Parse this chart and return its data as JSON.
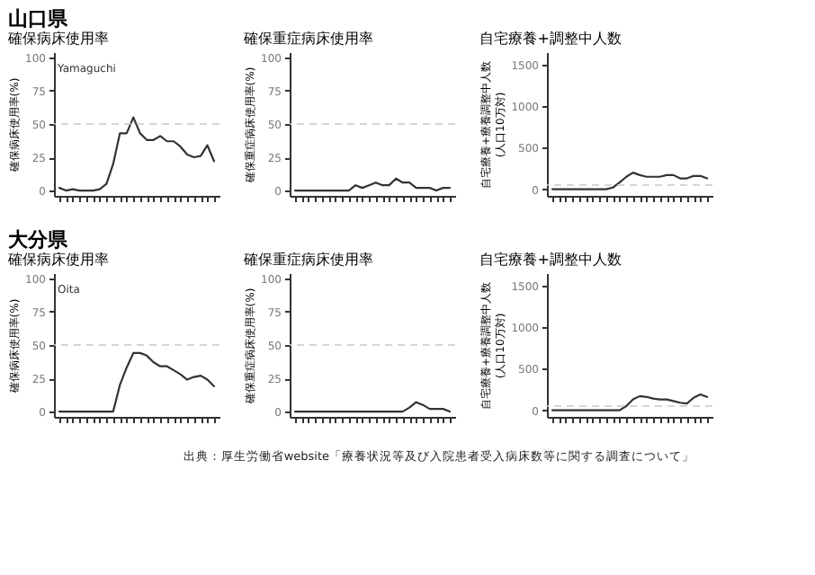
{
  "chart_data": [
    {
      "type": "line",
      "title": "確保病床使用率",
      "ylabel": "確保病床使用率(%)",
      "annotations": [
        "山口県",
        "Yamaguchi"
      ],
      "categories": [
        null,
        null,
        null,
        null,
        null,
        null,
        null,
        null,
        null,
        null,
        null,
        null,
        null,
        null,
        null,
        null,
        null,
        null,
        null,
        null,
        null,
        null,
        null,
        null
      ],
      "series": [
        {
          "color": "#333333",
          "values": [
            2,
            0,
            1,
            0,
            0,
            0,
            1,
            5,
            20,
            43,
            43,
            55,
            43,
            38,
            38,
            41,
            37,
            37,
            33,
            27,
            25,
            26,
            34,
            22
          ]
        }
      ],
      "ylim": [
        -4,
        104
      ],
      "yticks": [
        0,
        25,
        50,
        75,
        100
      ],
      "ref_lines": [
        {
          "axis": "y",
          "value": 50,
          "color": "#c8c8c8",
          "line_style": "dashed"
        }
      ],
      "tick_labels": "y",
      "grid": false
    },
    {
      "type": "line",
      "title": "確保重症病床使用率",
      "ylabel": "確保重症病床使用率(%)",
      "categories": [
        null,
        null,
        null,
        null,
        null,
        null,
        null,
        null,
        null,
        null,
        null,
        null,
        null,
        null,
        null,
        null,
        null,
        null,
        null,
        null,
        null,
        null,
        null,
        null
      ],
      "series": [
        {
          "color": "#333333",
          "values": [
            0,
            0,
            0,
            0,
            0,
            0,
            0,
            0,
            0,
            4,
            2,
            4,
            6,
            4,
            4,
            9,
            6,
            6,
            2,
            2,
            2,
            0,
            2,
            2
          ]
        }
      ],
      "ylim": [
        -4,
        104
      ],
      "yticks": [
        0,
        25,
        50,
        75,
        100
      ],
      "ref_lines": [
        {
          "axis": "y",
          "value": 50,
          "color": "#c8c8c8",
          "line_style": "dashed"
        }
      ],
      "tick_labels": "y",
      "grid": false
    },
    {
      "type": "line",
      "title": "自宅療養+調整中人数",
      "ylabel": "自宅療養+療養調整中人数(人口10万対)",
      "categories": [
        null,
        null,
        null,
        null,
        null,
        null,
        null,
        null,
        null,
        null,
        null,
        null,
        null,
        null,
        null,
        null,
        null,
        null,
        null,
        null,
        null,
        null,
        null,
        null
      ],
      "series": [
        {
          "color": "#333333",
          "values": [
            0,
            0,
            0,
            0,
            0,
            0,
            0,
            0,
            0,
            20,
            80,
            150,
            200,
            170,
            150,
            150,
            150,
            170,
            170,
            130,
            130,
            160,
            160,
            130
          ]
        }
      ],
      "ylim": [
        -80,
        1650
      ],
      "yticks": [
        0,
        500,
        1000,
        1500
      ],
      "ref_lines": [
        {
          "axis": "y",
          "value": 50,
          "color": "#c8c8c8",
          "line_style": "dashed"
        }
      ],
      "tick_labels": "y",
      "grid": false
    },
    {
      "type": "line",
      "title": "確保病床使用率",
      "ylabel": "確保病床使用率(%)",
      "annotations": [
        "大分県",
        "Oita"
      ],
      "categories": [
        null,
        null,
        null,
        null,
        null,
        null,
        null,
        null,
        null,
        null,
        null,
        null,
        null,
        null,
        null,
        null,
        null,
        null,
        null,
        null,
        null,
        null,
        null,
        null
      ],
      "series": [
        {
          "color": "#333333",
          "values": [
            0,
            0,
            0,
            0,
            0,
            0,
            0,
            0,
            0,
            20,
            33,
            44,
            44,
            42,
            37,
            34,
            34,
            31,
            28,
            24,
            26,
            27,
            24,
            19
          ]
        }
      ],
      "ylim": [
        -4,
        104
      ],
      "yticks": [
        0,
        25,
        50,
        75,
        100
      ],
      "ref_lines": [
        {
          "axis": "y",
          "value": 50,
          "color": "#c8c8c8",
          "line_style": "dashed"
        }
      ],
      "tick_labels": "y",
      "grid": false
    },
    {
      "type": "line",
      "title": "確保重症病床使用率",
      "ylabel": "確保重症病床使用率(%)",
      "categories": [
        null,
        null,
        null,
        null,
        null,
        null,
        null,
        null,
        null,
        null,
        null,
        null,
        null,
        null,
        null,
        null,
        null,
        null,
        null,
        null,
        null,
        null,
        null,
        null
      ],
      "series": [
        {
          "color": "#333333",
          "values": [
            0,
            0,
            0,
            0,
            0,
            0,
            0,
            0,
            0,
            0,
            0,
            0,
            0,
            0,
            0,
            0,
            0,
            3,
            7,
            5,
            2,
            2,
            2,
            0
          ]
        }
      ],
      "ylim": [
        -4,
        104
      ],
      "yticks": [
        0,
        25,
        50,
        75,
        100
      ],
      "ref_lines": [
        {
          "axis": "y",
          "value": 50,
          "color": "#c8c8c8",
          "line_style": "dashed"
        }
      ],
      "tick_labels": "y",
      "grid": false
    },
    {
      "type": "line",
      "title": "自宅療養+調整中人数",
      "ylabel": "自宅療養+療養調整中人数(人口10万対)",
      "annotations": [
        "出典：厚生労働省website「療養状況等及び入院患者受入病床数等に関する調査について」"
      ],
      "categories": [
        null,
        null,
        null,
        null,
        null,
        null,
        null,
        null,
        null,
        null,
        null,
        null,
        null,
        null,
        null,
        null,
        null,
        null,
        null,
        null,
        null,
        null,
        null,
        null
      ],
      "series": [
        {
          "color": "#333333",
          "values": [
            0,
            0,
            0,
            0,
            0,
            0,
            0,
            0,
            0,
            0,
            0,
            50,
            130,
            170,
            160,
            140,
            130,
            130,
            110,
            90,
            80,
            150,
            190,
            160
          ]
        }
      ],
      "ylim": [
        -80,
        1650
      ],
      "yticks": [
        0,
        500,
        1000,
        1500
      ],
      "ref_lines": [
        {
          "axis": "y",
          "value": 50,
          "color": "#c8c8c8",
          "line_style": "dashed"
        }
      ],
      "tick_labels": "y",
      "grid": false
    }
  ]
}
